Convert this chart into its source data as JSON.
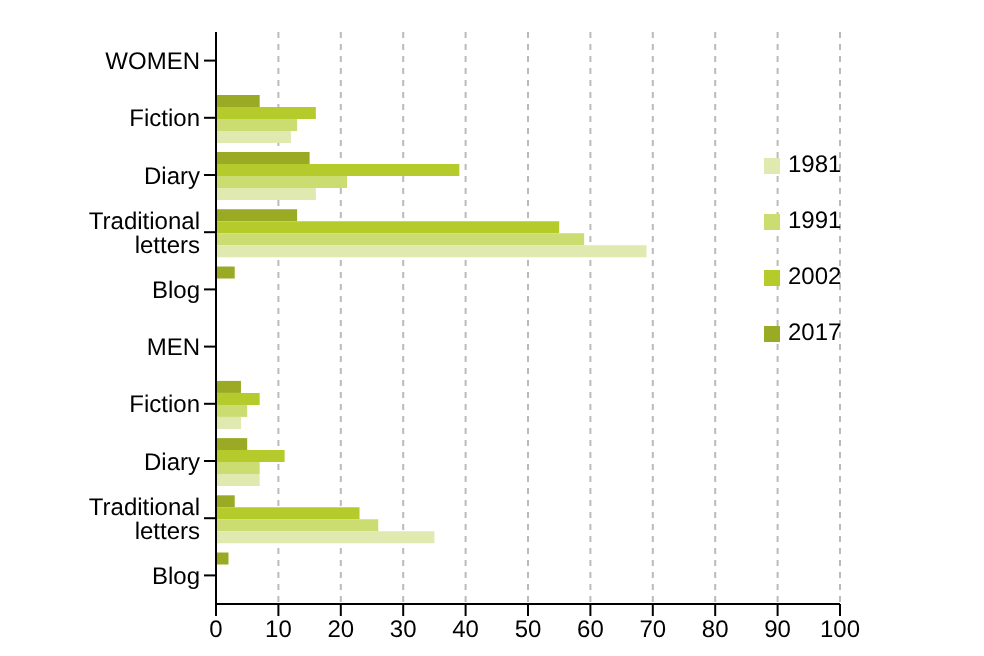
{
  "chart_data": {
    "type": "bar",
    "orientation": "horizontal",
    "categories": [
      "WOMEN",
      "Fiction",
      "Diary",
      "Traditional letters",
      "Blog",
      "MEN",
      "Fiction",
      "Diary",
      "Traditional letters",
      "Blog"
    ],
    "series": [
      {
        "name": "2017",
        "color": "#9aaa24",
        "values": [
          null,
          7,
          15,
          13,
          3,
          null,
          4,
          5,
          3,
          2
        ]
      },
      {
        "name": "2002",
        "color": "#b5cb2c",
        "values": [
          null,
          16,
          39,
          55,
          null,
          null,
          7,
          11,
          23,
          null
        ]
      },
      {
        "name": "1991",
        "color": "#cbdd70",
        "values": [
          null,
          13,
          21,
          59,
          null,
          null,
          5,
          7,
          26,
          null
        ]
      },
      {
        "name": "1981",
        "color": "#dfe9b0",
        "values": [
          null,
          12,
          16,
          69,
          null,
          null,
          4,
          7,
          35,
          null
        ]
      }
    ],
    "xlim": [
      0,
      100
    ],
    "xticks": [
      0,
      10,
      20,
      30,
      40,
      50,
      60,
      70,
      80,
      90,
      100
    ],
    "grid": "x",
    "legend": "top right"
  }
}
